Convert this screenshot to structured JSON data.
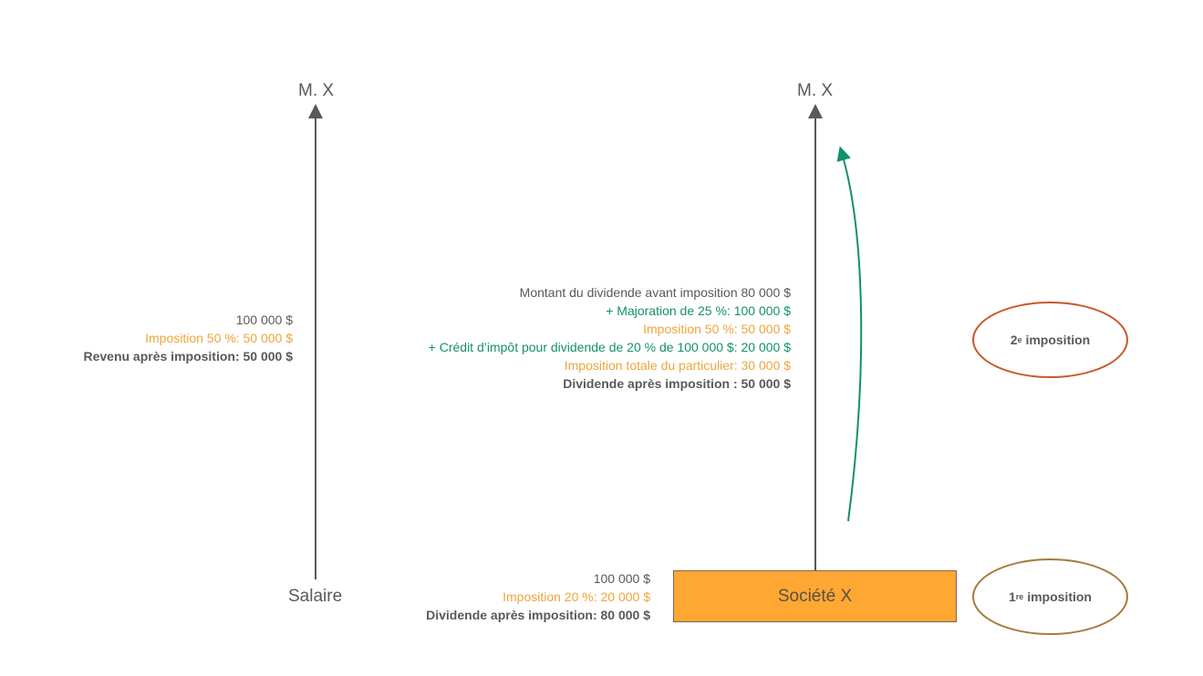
{
  "left": {
    "top_label": "M. X",
    "bottom_label": "Salaire",
    "lines": [
      "100 000 $",
      "Imposition 50 %: 50 000 $",
      "Revenu après imposition: 50 000 $"
    ]
  },
  "right": {
    "top_label": "M. X",
    "company": "Société X",
    "company_lines": [
      "100 000 $",
      "Imposition 20 %: 20 000 $",
      "Dividende après imposition: 80 000 $"
    ],
    "dividend_lines": [
      "Montant du dividende avant imposition 80 000 $",
      "+ Majoration de 25 %: 100 000 $",
      "Imposition 50 %: 50 000 $",
      "+ Crédit d’impôt pour dividende de 20 % de 100 000 $: 20 000 $",
      "Imposition totale du particulier: 30 000 $",
      "Dividende après imposition : 50 000 $"
    ]
  },
  "badges": {
    "first": {
      "num": "1",
      "sup": "re",
      "text": " imposition"
    },
    "second": {
      "num": "2",
      "sup": "e",
      "text": " imposition"
    }
  },
  "colors": {
    "text": "#595959",
    "tax": "#eea53a",
    "credit": "#14906c",
    "company_fill": "#ffa733",
    "first_border": "#a57b3c",
    "second_border": "#c9582a"
  }
}
